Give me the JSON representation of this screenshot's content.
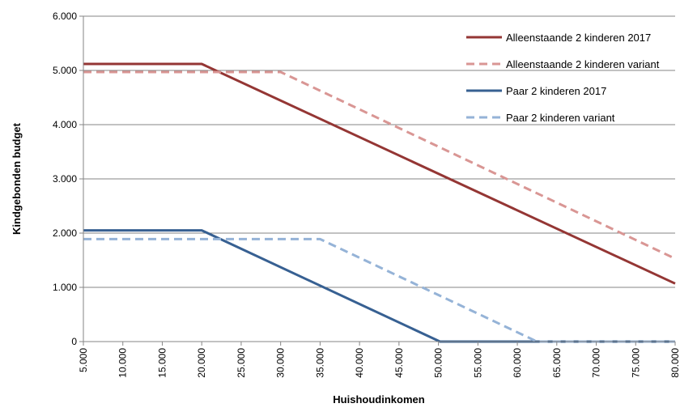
{
  "chart_data": {
    "type": "line",
    "xlabel": "Huishoudinkomen",
    "ylabel": "Kindgebonden budget",
    "xlim": [
      5000,
      80000
    ],
    "ylim": [
      0,
      6000
    ],
    "x_ticks": [
      "5.000",
      "10.000",
      "15.000",
      "20.000",
      "25.000",
      "30.000",
      "35.000",
      "40.000",
      "45.000",
      "50.000",
      "55.000",
      "60.000",
      "65.000",
      "70.000",
      "75.000",
      "80.000"
    ],
    "y_ticks": [
      "0",
      "1.000",
      "2.000",
      "3.000",
      "4.000",
      "5.000",
      "6.000"
    ],
    "grid": "horizontal",
    "legend_position": "top-right",
    "series": [
      {
        "name": "Alleenstaande 2 kinderen 2017",
        "color": "#943634",
        "dashed": false,
        "points": [
          [
            5000,
            5120
          ],
          [
            20000,
            5120
          ],
          [
            80000,
            1070
          ]
        ]
      },
      {
        "name": "Alleenstaande 2 kinderen variant",
        "color": "#D99694",
        "dashed": true,
        "points": [
          [
            5000,
            4970
          ],
          [
            30000,
            4970
          ],
          [
            80000,
            1530
          ]
        ]
      },
      {
        "name": "Paar 2 kinderen 2017",
        "color": "#376092",
        "dashed": false,
        "points": [
          [
            5000,
            2050
          ],
          [
            20000,
            2050
          ],
          [
            50200,
            0
          ],
          [
            80000,
            0
          ]
        ]
      },
      {
        "name": "Paar 2 kinderen variant",
        "color": "#95B3D7",
        "dashed": true,
        "points": [
          [
            5000,
            1890
          ],
          [
            35000,
            1890
          ],
          [
            62500,
            0
          ],
          [
            80000,
            0
          ]
        ]
      }
    ]
  }
}
